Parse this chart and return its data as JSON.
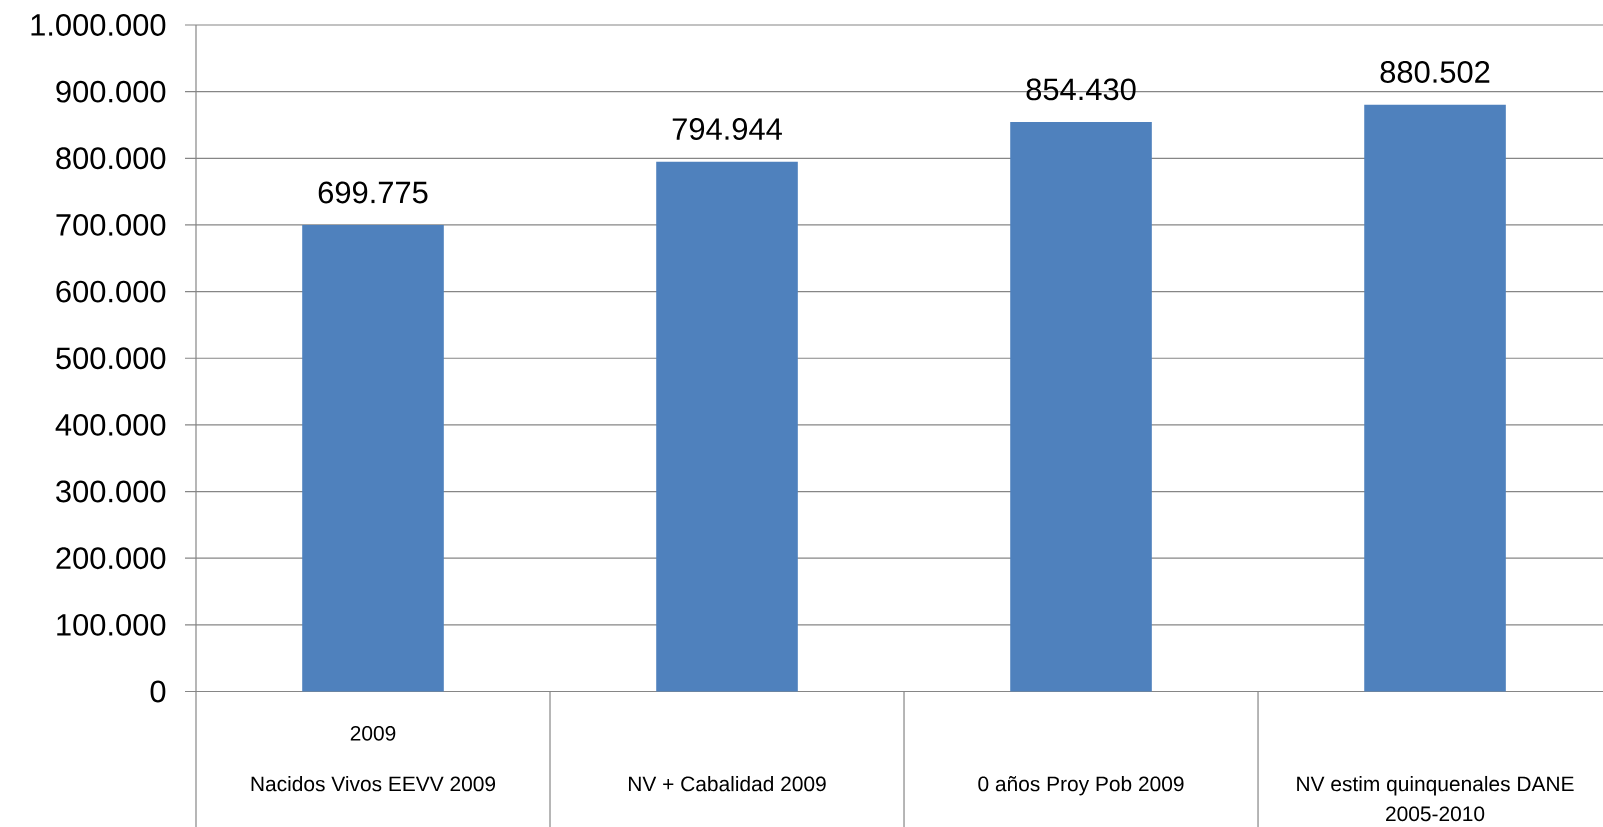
{
  "chart_data": {
    "type": "bar",
    "categories": [
      "Nacidos Vivos EEVV 2009",
      "NV + Cabalidad 2009",
      "0 años Proy Pob 2009",
      "NV estim quinquenales DANE 2005-2010"
    ],
    "values": [
      699775,
      794944,
      854430,
      880502
    ],
    "value_labels": [
      "699.775",
      "794.944",
      "854.430",
      "880.502"
    ],
    "color": "#4f81bd",
    "ylim": [
      0,
      1000000
    ],
    "yticks": [
      0,
      {
        "value": 100000,
        "label": "100.000"
      },
      {
        "value": 200000,
        "label": "200.000"
      },
      {
        "value": 300000,
        "label": "300.000"
      },
      {
        "value": 400000,
        "label": "400.000"
      },
      {
        "value": 500000,
        "label": "500.000"
      },
      {
        "value": 600000,
        "label": "600.000"
      },
      {
        "value": 700000,
        "label": "700.000"
      },
      {
        "value": 800000,
        "label": "800.000"
      },
      {
        "value": 900000,
        "label": "900.000"
      },
      {
        "value": 1000000,
        "label": "1.000.000"
      }
    ],
    "grid": "y",
    "annotations": [
      "2009"
    ]
  }
}
